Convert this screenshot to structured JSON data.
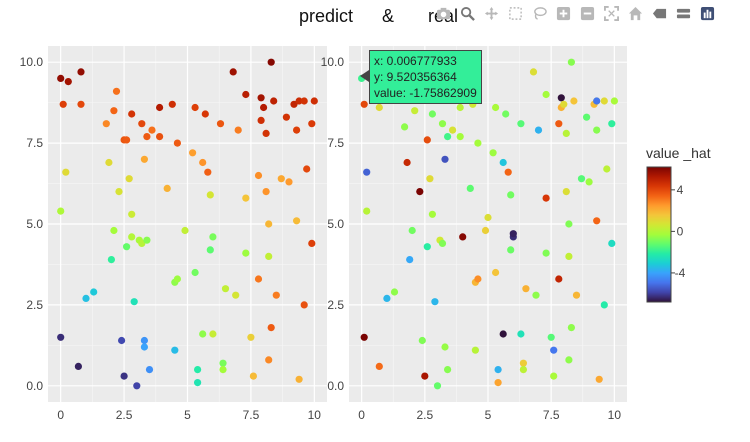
{
  "title": {
    "left": "predict",
    "right": "real"
  },
  "colorbar": {
    "title": "value _hat",
    "ticks": [
      "4",
      "0",
      "-4"
    ],
    "tick_values": [
      4,
      0,
      -4
    ],
    "range": [
      -6.8,
      6.2
    ],
    "colorscale": [
      "#30123b",
      "#4145ab",
      "#4675ed",
      "#39a2fc",
      "#1bcfd4",
      "#24eca6",
      "#61fc6c",
      "#a4fc3b",
      "#d1e834",
      "#f3c63a",
      "#fe9b2d",
      "#f36315",
      "#d93806",
      "#b11901",
      "#7a0402"
    ]
  },
  "hover": {
    "x_line": "x: 0.006777933",
    "y_line": "y: 9.520356364",
    "value_line": "value: -1.75862909",
    "bg_color": "#33ee99"
  },
  "modebar": {
    "icons": [
      "camera-icon",
      "zoom-icon",
      "pan-icon",
      "box-select-icon",
      "lasso-icon",
      "zoom-in-icon",
      "zoom-out-icon",
      "autoscale-icon",
      "home-icon",
      "spike-lines-icon",
      "compare-hover-icon",
      "plotly-logo-icon"
    ]
  },
  "chart_data": [
    {
      "type": "scatter",
      "title": "predict",
      "xlim": [
        -0.5,
        10.5
      ],
      "ylim": [
        -0.5,
        10.5
      ],
      "xticks": [
        "0",
        "2.5",
        "5",
        "7.5",
        "10"
      ],
      "xtick_values": [
        0,
        2.5,
        5,
        7.5,
        10
      ],
      "yticks": [
        "0.0",
        "2.5",
        "5.0",
        "7.5",
        "10.0"
      ],
      "ytick_values": [
        0,
        2.5,
        5,
        7.5,
        10
      ],
      "grid": true,
      "background": "#ebebeb",
      "points": [
        [
          0.0,
          9.5,
          5.8
        ],
        [
          0.3,
          9.4,
          5.5
        ],
        [
          0.8,
          9.7,
          5.8
        ],
        [
          0.1,
          8.7,
          4.2
        ],
        [
          0.8,
          8.7,
          4.0
        ],
        [
          0.2,
          6.6,
          1.0
        ],
        [
          0.0,
          5.4,
          -0.1
        ],
        [
          0.0,
          1.5,
          -6.3
        ],
        [
          0.7,
          0.6,
          -6.5
        ],
        [
          1.0,
          2.7,
          -3.4
        ],
        [
          1.3,
          2.9,
          -3.2
        ],
        [
          1.8,
          8.1,
          2.8
        ],
        [
          1.9,
          6.9,
          1.0
        ],
        [
          2.1,
          8.5,
          3.4
        ],
        [
          2.2,
          9.1,
          3.2
        ],
        [
          2.0,
          3.9,
          -2.0
        ],
        [
          2.1,
          4.8,
          -0.3
        ],
        [
          2.3,
          6.0,
          0.8
        ],
        [
          2.4,
          1.4,
          -5.8
        ],
        [
          2.5,
          0.3,
          -6.2
        ],
        [
          2.5,
          7.6,
          3.7
        ],
        [
          2.6,
          7.6,
          3.6
        ],
        [
          2.6,
          4.3,
          -1.2
        ],
        [
          2.7,
          6.4,
          1.0
        ],
        [
          2.8,
          8.4,
          4.5
        ],
        [
          2.8,
          5.3,
          0.5
        ],
        [
          2.8,
          4.6,
          0.0
        ],
        [
          2.9,
          2.6,
          -2.5
        ],
        [
          3.0,
          0.0,
          -5.9
        ],
        [
          3.1,
          4.5,
          -0.2
        ],
        [
          3.2,
          4.4,
          0.1
        ],
        [
          3.2,
          8.1,
          4.0
        ],
        [
          3.3,
          1.4,
          -4.3
        ],
        [
          3.3,
          1.2,
          -4.0
        ],
        [
          3.3,
          7.0,
          2.2
        ],
        [
          3.4,
          7.7,
          3.6
        ],
        [
          3.4,
          4.5,
          -0.7
        ],
        [
          3.5,
          0.5,
          -4.4
        ],
        [
          3.6,
          7.9,
          3.2
        ],
        [
          3.9,
          8.6,
          5.2
        ],
        [
          3.9,
          7.7,
          3.8
        ],
        [
          4.2,
          6.1,
          2.0
        ],
        [
          4.4,
          8.7,
          4.6
        ],
        [
          4.5,
          3.2,
          -0.6
        ],
        [
          4.5,
          1.1,
          -3.5
        ],
        [
          4.6,
          7.5,
          3.6
        ],
        [
          4.6,
          3.3,
          -0.4
        ],
        [
          4.9,
          4.8,
          0.3
        ],
        [
          5.2,
          7.2,
          2.4
        ],
        [
          5.3,
          3.5,
          -1.0
        ],
        [
          5.3,
          8.6,
          4.2
        ],
        [
          5.4,
          0.5,
          -2.2
        ],
        [
          5.4,
          0.1,
          -2.4
        ],
        [
          5.6,
          6.9,
          2.6
        ],
        [
          5.6,
          1.6,
          -0.6
        ],
        [
          5.7,
          8.4,
          4.4
        ],
        [
          5.8,
          6.6,
          3.5
        ],
        [
          5.9,
          5.9,
          0.7
        ],
        [
          5.9,
          4.2,
          -1.3
        ],
        [
          6.0,
          4.6,
          -0.9
        ],
        [
          6.0,
          1.6,
          0.4
        ],
        [
          6.3,
          8.1,
          3.7
        ],
        [
          6.4,
          0.7,
          -0.9
        ],
        [
          6.4,
          0.5,
          -0.3
        ],
        [
          6.5,
          3.0,
          0.3
        ],
        [
          6.8,
          9.7,
          5.6
        ],
        [
          6.9,
          2.8,
          0.7
        ],
        [
          7.0,
          7.9,
          3.0
        ],
        [
          7.3,
          9.0,
          5.1
        ],
        [
          7.3,
          5.8,
          1.6
        ],
        [
          7.3,
          4.1,
          -0.4
        ],
        [
          7.5,
          1.5,
          1.3
        ],
        [
          7.6,
          0.3,
          1.8
        ],
        [
          7.8,
          6.5,
          2.7
        ],
        [
          7.8,
          3.3,
          3.1
        ],
        [
          7.9,
          8.9,
          5.5
        ],
        [
          7.9,
          8.2,
          4.6
        ],
        [
          8.0,
          8.6,
          5.2
        ],
        [
          8.1,
          7.8,
          4.5
        ],
        [
          8.1,
          6.0,
          2.6
        ],
        [
          8.2,
          5.0,
          1.9
        ],
        [
          8.2,
          4.0,
          0.3
        ],
        [
          8.3,
          10.0,
          6.0
        ],
        [
          8.4,
          8.8,
          5.0
        ],
        [
          8.5,
          2.8,
          3.0
        ],
        [
          8.3,
          1.8,
          3.6
        ],
        [
          8.2,
          0.8,
          2.8
        ],
        [
          8.7,
          6.4,
          2.2
        ],
        [
          8.9,
          8.3,
          4.5
        ],
        [
          9.0,
          6.3,
          2.5
        ],
        [
          9.2,
          8.7,
          4.9
        ],
        [
          9.3,
          7.9,
          4.2
        ],
        [
          9.3,
          5.1,
          1.8
        ],
        [
          9.4,
          8.8,
          4.7
        ],
        [
          9.6,
          8.8,
          4.5
        ],
        [
          9.6,
          2.5,
          3.8
        ],
        [
          9.7,
          6.7,
          4.0
        ],
        [
          9.9,
          8.1,
          4.3
        ],
        [
          9.9,
          4.4,
          4.2
        ],
        [
          10.0,
          8.8,
          4.6
        ],
        [
          9.4,
          0.2,
          2.0
        ]
      ]
    },
    {
      "type": "scatter",
      "title": "real",
      "xlim": [
        -0.5,
        10.5
      ],
      "ylim": [
        -0.5,
        10.5
      ],
      "xticks": [
        "0",
        "2.5",
        "5",
        "7.5",
        "10"
      ],
      "xtick_values": [
        0,
        2.5,
        5,
        7.5,
        10
      ],
      "yticks": [
        "0.0",
        "2.5",
        "5.0",
        "7.5",
        "10.0"
      ],
      "ytick_values": [
        0,
        2.5,
        5,
        7.5,
        10
      ],
      "grid": true,
      "background": "#ebebeb",
      "points": [
        [
          0.0,
          9.5,
          -1.8
        ],
        [
          0.1,
          8.7,
          4.0
        ],
        [
          0.2,
          5.4,
          0.1
        ],
        [
          0.2,
          6.6,
          -5.3
        ],
        [
          0.1,
          1.5,
          6.5
        ],
        [
          0.7,
          0.6,
          3.3
        ],
        [
          0.7,
          8.6,
          1.0
        ],
        [
          1.0,
          2.7,
          -3.6
        ],
        [
          1.3,
          2.9,
          -0.6
        ],
        [
          1.7,
          8.0,
          -0.6
        ],
        [
          1.8,
          6.9,
          4.8
        ],
        [
          1.9,
          3.9,
          -3.9
        ],
        [
          2.0,
          4.8,
          -1.0
        ],
        [
          2.1,
          8.5,
          0.4
        ],
        [
          2.3,
          6.0,
          6.3
        ],
        [
          2.4,
          1.4,
          -0.8
        ],
        [
          2.5,
          0.3,
          5.4
        ],
        [
          2.6,
          7.6,
          3.9
        ],
        [
          2.6,
          4.3,
          -2.1
        ],
        [
          2.7,
          6.4,
          1.0
        ],
        [
          2.8,
          8.4,
          -1.0
        ],
        [
          2.8,
          5.3,
          -0.3
        ],
        [
          2.9,
          2.6,
          -3.6
        ],
        [
          3.0,
          0.0,
          -1.2
        ],
        [
          3.1,
          4.5,
          0.6
        ],
        [
          3.2,
          4.4,
          -0.8
        ],
        [
          3.2,
          8.1,
          -0.6
        ],
        [
          3.3,
          1.2,
          -0.5
        ],
        [
          3.3,
          7.0,
          -5.6
        ],
        [
          3.4,
          7.7,
          -1.7
        ],
        [
          3.4,
          0.5,
          -0.7
        ],
        [
          3.6,
          7.9,
          0.8
        ],
        [
          3.9,
          8.6,
          0.1
        ],
        [
          3.9,
          7.7,
          -0.3
        ],
        [
          4.0,
          4.6,
          6.0
        ],
        [
          4.3,
          6.1,
          -1.3
        ],
        [
          4.4,
          8.7,
          0.6
        ],
        [
          4.5,
          3.2,
          1.9
        ],
        [
          4.5,
          1.1,
          0.1
        ],
        [
          4.6,
          7.5,
          -0.3
        ],
        [
          4.6,
          3.3,
          2.7
        ],
        [
          4.9,
          4.8,
          1.3
        ],
        [
          5.0,
          5.2,
          0.9
        ],
        [
          5.2,
          7.2,
          -0.4
        ],
        [
          5.3,
          3.5,
          1.6
        ],
        [
          5.3,
          8.6,
          -0.2
        ],
        [
          5.4,
          0.5,
          -3.7
        ],
        [
          5.4,
          0.1,
          2.3
        ],
        [
          5.6,
          6.9,
          -3.3
        ],
        [
          5.6,
          1.6,
          -6.8
        ],
        [
          5.7,
          8.4,
          -1.0
        ],
        [
          5.8,
          6.6,
          3.4
        ],
        [
          5.9,
          5.9,
          -1.0
        ],
        [
          5.9,
          4.2,
          -1.1
        ],
        [
          6.0,
          4.6,
          -6.3
        ],
        [
          6.0,
          4.7,
          -6.5
        ],
        [
          6.3,
          8.1,
          -1.4
        ],
        [
          6.4,
          0.7,
          1.4
        ],
        [
          6.4,
          0.5,
          0.2
        ],
        [
          6.3,
          1.6,
          -2.5
        ],
        [
          6.5,
          3.0,
          2.0
        ],
        [
          6.8,
          9.7,
          0.9
        ],
        [
          6.9,
          2.8,
          -0.6
        ],
        [
          7.0,
          7.9,
          -3.7
        ],
        [
          7.3,
          9.0,
          -0.3
        ],
        [
          7.3,
          5.8,
          4.4
        ],
        [
          7.3,
          4.1,
          -0.8
        ],
        [
          7.5,
          1.5,
          -1.4
        ],
        [
          7.6,
          1.1,
          -4.9
        ],
        [
          7.6,
          0.3,
          -0.2
        ],
        [
          7.8,
          8.1,
          3.6
        ],
        [
          7.8,
          3.3,
          4.9
        ],
        [
          7.9,
          8.9,
          -6.8
        ],
        [
          7.9,
          8.6,
          2.0
        ],
        [
          8.0,
          8.7,
          1.0
        ],
        [
          8.1,
          7.8,
          0.1
        ],
        [
          8.1,
          6.0,
          0.9
        ],
        [
          8.2,
          5.0,
          -0.8
        ],
        [
          8.2,
          4.0,
          0.3
        ],
        [
          8.3,
          10.0,
          -0.7
        ],
        [
          8.4,
          8.8,
          1.6
        ],
        [
          8.5,
          2.8,
          1.9
        ],
        [
          8.3,
          1.8,
          -0.6
        ],
        [
          8.2,
          0.8,
          -0.6
        ],
        [
          8.7,
          6.4,
          -1.4
        ],
        [
          8.9,
          8.3,
          -1.3
        ],
        [
          9.0,
          6.3,
          -0.4
        ],
        [
          9.2,
          8.7,
          1.8
        ],
        [
          9.3,
          8.8,
          0.9
        ],
        [
          9.3,
          7.9,
          -0.7
        ],
        [
          9.3,
          5.1,
          3.4
        ],
        [
          9.4,
          0.2,
          2.2
        ],
        [
          9.6,
          8.8,
          1.0
        ],
        [
          9.6,
          2.5,
          -2.2
        ],
        [
          9.7,
          6.7,
          0.2
        ],
        [
          9.9,
          8.1,
          -2.0
        ],
        [
          9.9,
          4.4,
          -2.7
        ],
        [
          10.0,
          8.8,
          -0.2
        ],
        [
          9.3,
          8.8,
          -4.9
        ]
      ]
    }
  ]
}
